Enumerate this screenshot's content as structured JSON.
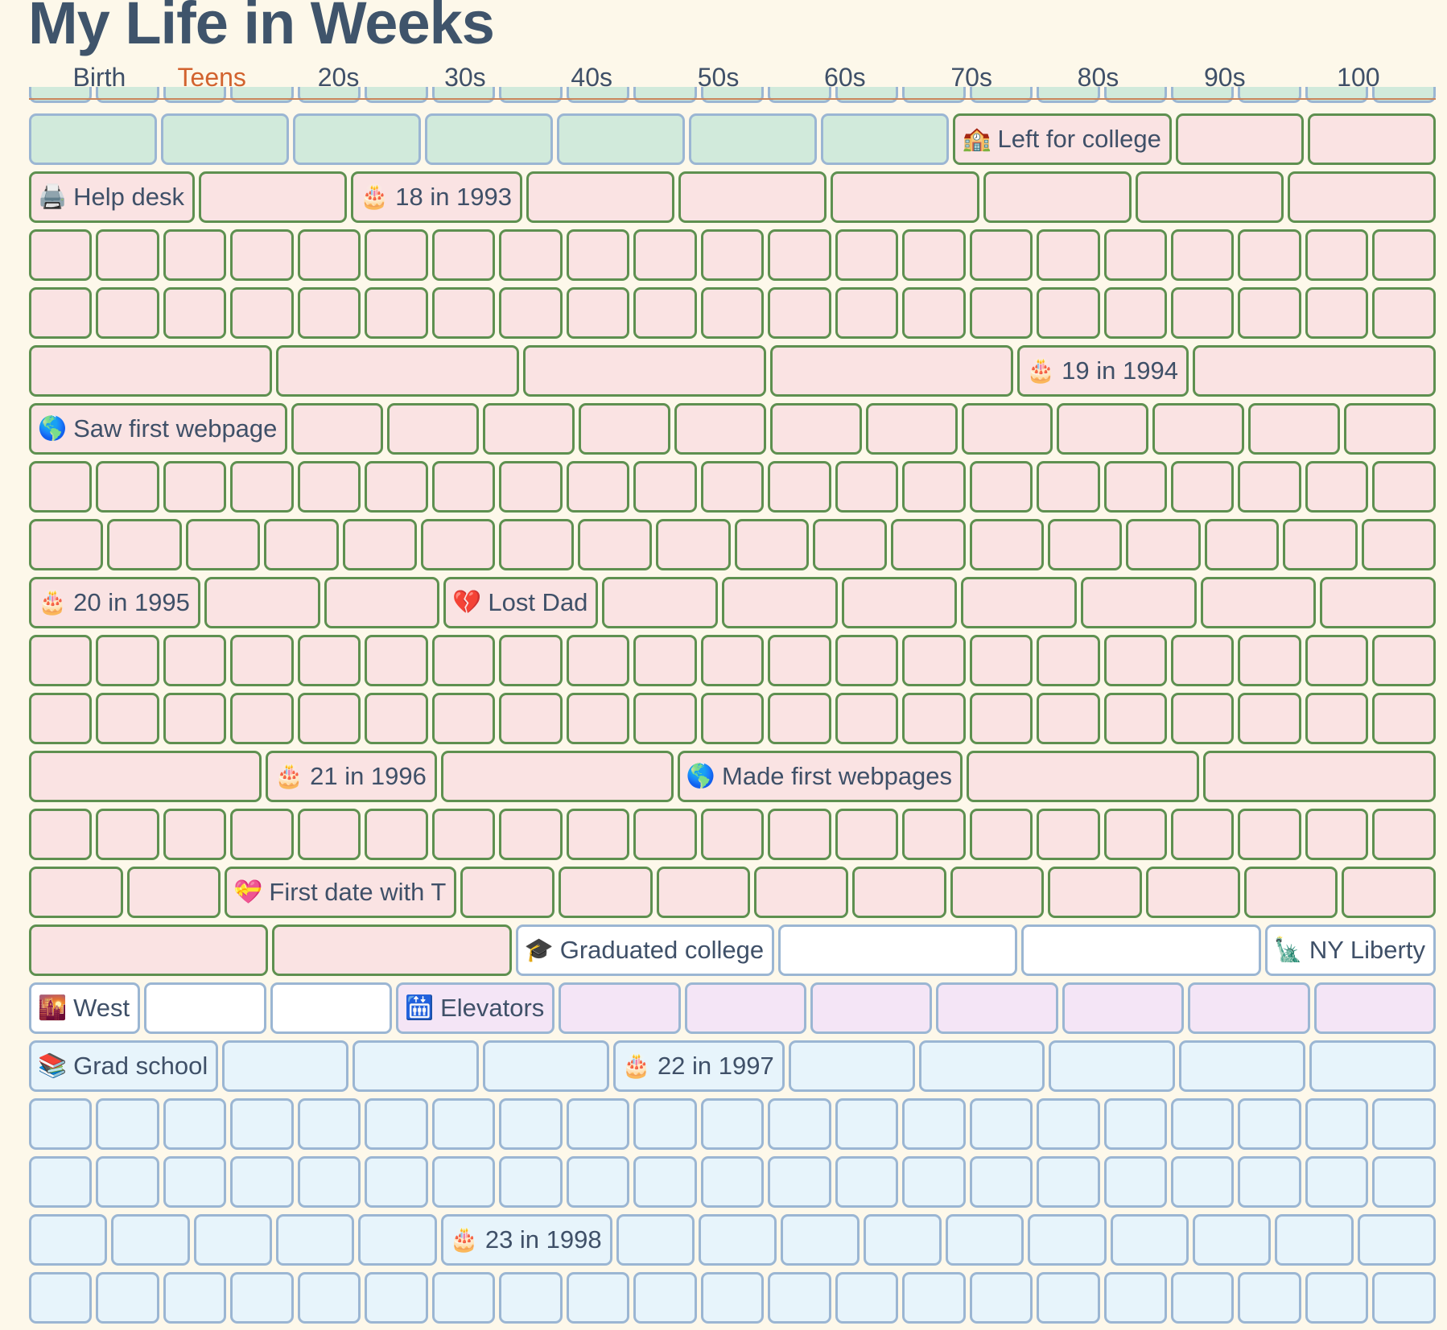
{
  "title": "My Life in Weeks",
  "decades": [
    {
      "label": "Birth",
      "current": false
    },
    {
      "label": "Teens",
      "current": true
    },
    {
      "label": "20s",
      "current": false
    },
    {
      "label": "30s",
      "current": false
    },
    {
      "label": "40s",
      "current": false
    },
    {
      "label": "50s",
      "current": false
    },
    {
      "label": "60s",
      "current": false
    },
    {
      "label": "70s",
      "current": false
    },
    {
      "label": "80s",
      "current": false
    },
    {
      "label": "90s",
      "current": false
    },
    {
      "label": "100",
      "current": false
    }
  ],
  "colors": {
    "background": "#fdf8ea",
    "title": "#3f546b",
    "current_decade": "#d2632f",
    "childhood_fill": "#d1eadb",
    "college_fill": "#fae3e3",
    "college_border": "#5e9050",
    "work_fill": "#f4e5f6",
    "grad_fill": "#e7f4fb",
    "default_border": "#9bb6d3"
  },
  "rows": [
    {
      "cells": [
        {
          "type": "childhood"
        },
        {
          "type": "childhood"
        },
        {
          "type": "childhood"
        },
        {
          "type": "childhood"
        },
        {
          "type": "childhood"
        },
        {
          "type": "childhood"
        },
        {
          "type": "childhood"
        },
        {
          "type": "college",
          "label": "Left for college",
          "icon": "school-icon",
          "glyph": "🏫"
        },
        {
          "type": "college"
        },
        {
          "type": "college"
        }
      ]
    },
    {
      "cells": [
        {
          "type": "college",
          "label": "Help desk",
          "icon": "printer-icon",
          "glyph": "🖨️"
        },
        {
          "type": "college"
        },
        {
          "type": "college",
          "label": "18 in 1993",
          "icon": "birthday-cake-icon",
          "glyph": "🎂"
        },
        {
          "type": "college"
        },
        {
          "type": "college"
        },
        {
          "type": "college"
        },
        {
          "type": "college"
        },
        {
          "type": "college"
        },
        {
          "type": "college"
        }
      ]
    },
    {
      "repeat": 21,
      "type": "college"
    },
    {
      "repeat": 21,
      "type": "college"
    },
    {
      "cells": [
        {
          "type": "college"
        },
        {
          "type": "college"
        },
        {
          "type": "college"
        },
        {
          "type": "college"
        },
        {
          "type": "college",
          "label": "19 in 1994",
          "icon": "birthday-cake-icon",
          "glyph": "🎂"
        },
        {
          "type": "college"
        }
      ]
    },
    {
      "cells": [
        {
          "type": "college",
          "label": "Saw first webpage",
          "icon": "globe-icon",
          "glyph": "🌎"
        },
        {
          "type": "college"
        },
        {
          "type": "college"
        },
        {
          "type": "college"
        },
        {
          "type": "college"
        },
        {
          "type": "college"
        },
        {
          "type": "college"
        },
        {
          "type": "college"
        },
        {
          "type": "college"
        },
        {
          "type": "college"
        },
        {
          "type": "college"
        },
        {
          "type": "college"
        },
        {
          "type": "college"
        }
      ]
    },
    {
      "repeat": 21,
      "type": "college"
    },
    {
      "repeat": 18,
      "type": "college"
    },
    {
      "cells": [
        {
          "type": "college",
          "label": "20 in 1995",
          "icon": "birthday-cake-icon",
          "glyph": "🎂"
        },
        {
          "type": "college"
        },
        {
          "type": "college"
        },
        {
          "type": "college",
          "label": "Lost Dad",
          "icon": "broken-heart-icon",
          "glyph": "💔"
        },
        {
          "type": "college"
        },
        {
          "type": "college"
        },
        {
          "type": "college"
        },
        {
          "type": "college"
        },
        {
          "type": "college"
        },
        {
          "type": "college"
        },
        {
          "type": "college"
        }
      ]
    },
    {
      "repeat": 21,
      "type": "college"
    },
    {
      "repeat": 21,
      "type": "college"
    },
    {
      "cells": [
        {
          "type": "college"
        },
        {
          "type": "college",
          "label": "21 in 1996",
          "icon": "birthday-cake-icon",
          "glyph": "🎂"
        },
        {
          "type": "college"
        },
        {
          "type": "college",
          "label": "Made first webpages",
          "icon": "globe-icon",
          "glyph": "🌎"
        },
        {
          "type": "college"
        },
        {
          "type": "college"
        }
      ]
    },
    {
      "repeat": 21,
      "type": "college"
    },
    {
      "cells": [
        {
          "type": "college"
        },
        {
          "type": "college"
        },
        {
          "type": "college",
          "label": "First date with T",
          "icon": "sparkling-heart-icon",
          "glyph": "💝"
        },
        {
          "type": "college"
        },
        {
          "type": "college"
        },
        {
          "type": "college"
        },
        {
          "type": "college"
        },
        {
          "type": "college"
        },
        {
          "type": "college"
        },
        {
          "type": "college"
        },
        {
          "type": "college"
        },
        {
          "type": "college"
        },
        {
          "type": "college"
        }
      ]
    },
    {
      "cells": [
        {
          "type": "college"
        },
        {
          "type": "college"
        },
        {
          "type": "transition",
          "label": "Graduated college",
          "icon": "graduation-cap-icon",
          "glyph": "🎓"
        },
        {
          "type": "transition"
        },
        {
          "type": "transition"
        },
        {
          "type": "transition",
          "label": "NY Liberty",
          "icon": "statue-of-liberty-icon",
          "glyph": "🗽"
        }
      ]
    },
    {
      "cells": [
        {
          "type": "transition",
          "label": "West",
          "icon": "sunset-icon",
          "glyph": "🌇"
        },
        {
          "type": "transition"
        },
        {
          "type": "transition"
        },
        {
          "type": "work",
          "label": "Elevators",
          "icon": "elevator-icon",
          "glyph": "🛗"
        },
        {
          "type": "work"
        },
        {
          "type": "work"
        },
        {
          "type": "work"
        },
        {
          "type": "work"
        },
        {
          "type": "work"
        },
        {
          "type": "work"
        },
        {
          "type": "work"
        }
      ]
    },
    {
      "cells": [
        {
          "type": "grad",
          "label": "Grad school",
          "icon": "books-icon",
          "glyph": "📚"
        },
        {
          "type": "grad"
        },
        {
          "type": "grad"
        },
        {
          "type": "grad"
        },
        {
          "type": "grad",
          "label": "22 in 1997",
          "icon": "birthday-cake-icon",
          "glyph": "🎂"
        },
        {
          "type": "grad"
        },
        {
          "type": "grad"
        },
        {
          "type": "grad"
        },
        {
          "type": "grad"
        },
        {
          "type": "grad"
        }
      ]
    },
    {
      "repeat": 21,
      "type": "grad"
    },
    {
      "repeat": 21,
      "type": "grad"
    },
    {
      "cells": [
        {
          "type": "grad"
        },
        {
          "type": "grad"
        },
        {
          "type": "grad"
        },
        {
          "type": "grad"
        },
        {
          "type": "grad"
        },
        {
          "type": "grad",
          "label": "23 in 1998",
          "icon": "birthday-cake-icon",
          "glyph": "🎂"
        },
        {
          "type": "grad"
        },
        {
          "type": "grad"
        },
        {
          "type": "grad"
        },
        {
          "type": "grad"
        },
        {
          "type": "grad"
        },
        {
          "type": "grad"
        },
        {
          "type": "grad"
        },
        {
          "type": "grad"
        },
        {
          "type": "grad"
        },
        {
          "type": "grad"
        }
      ]
    },
    {
      "repeat": 21,
      "type": "grad"
    }
  ]
}
